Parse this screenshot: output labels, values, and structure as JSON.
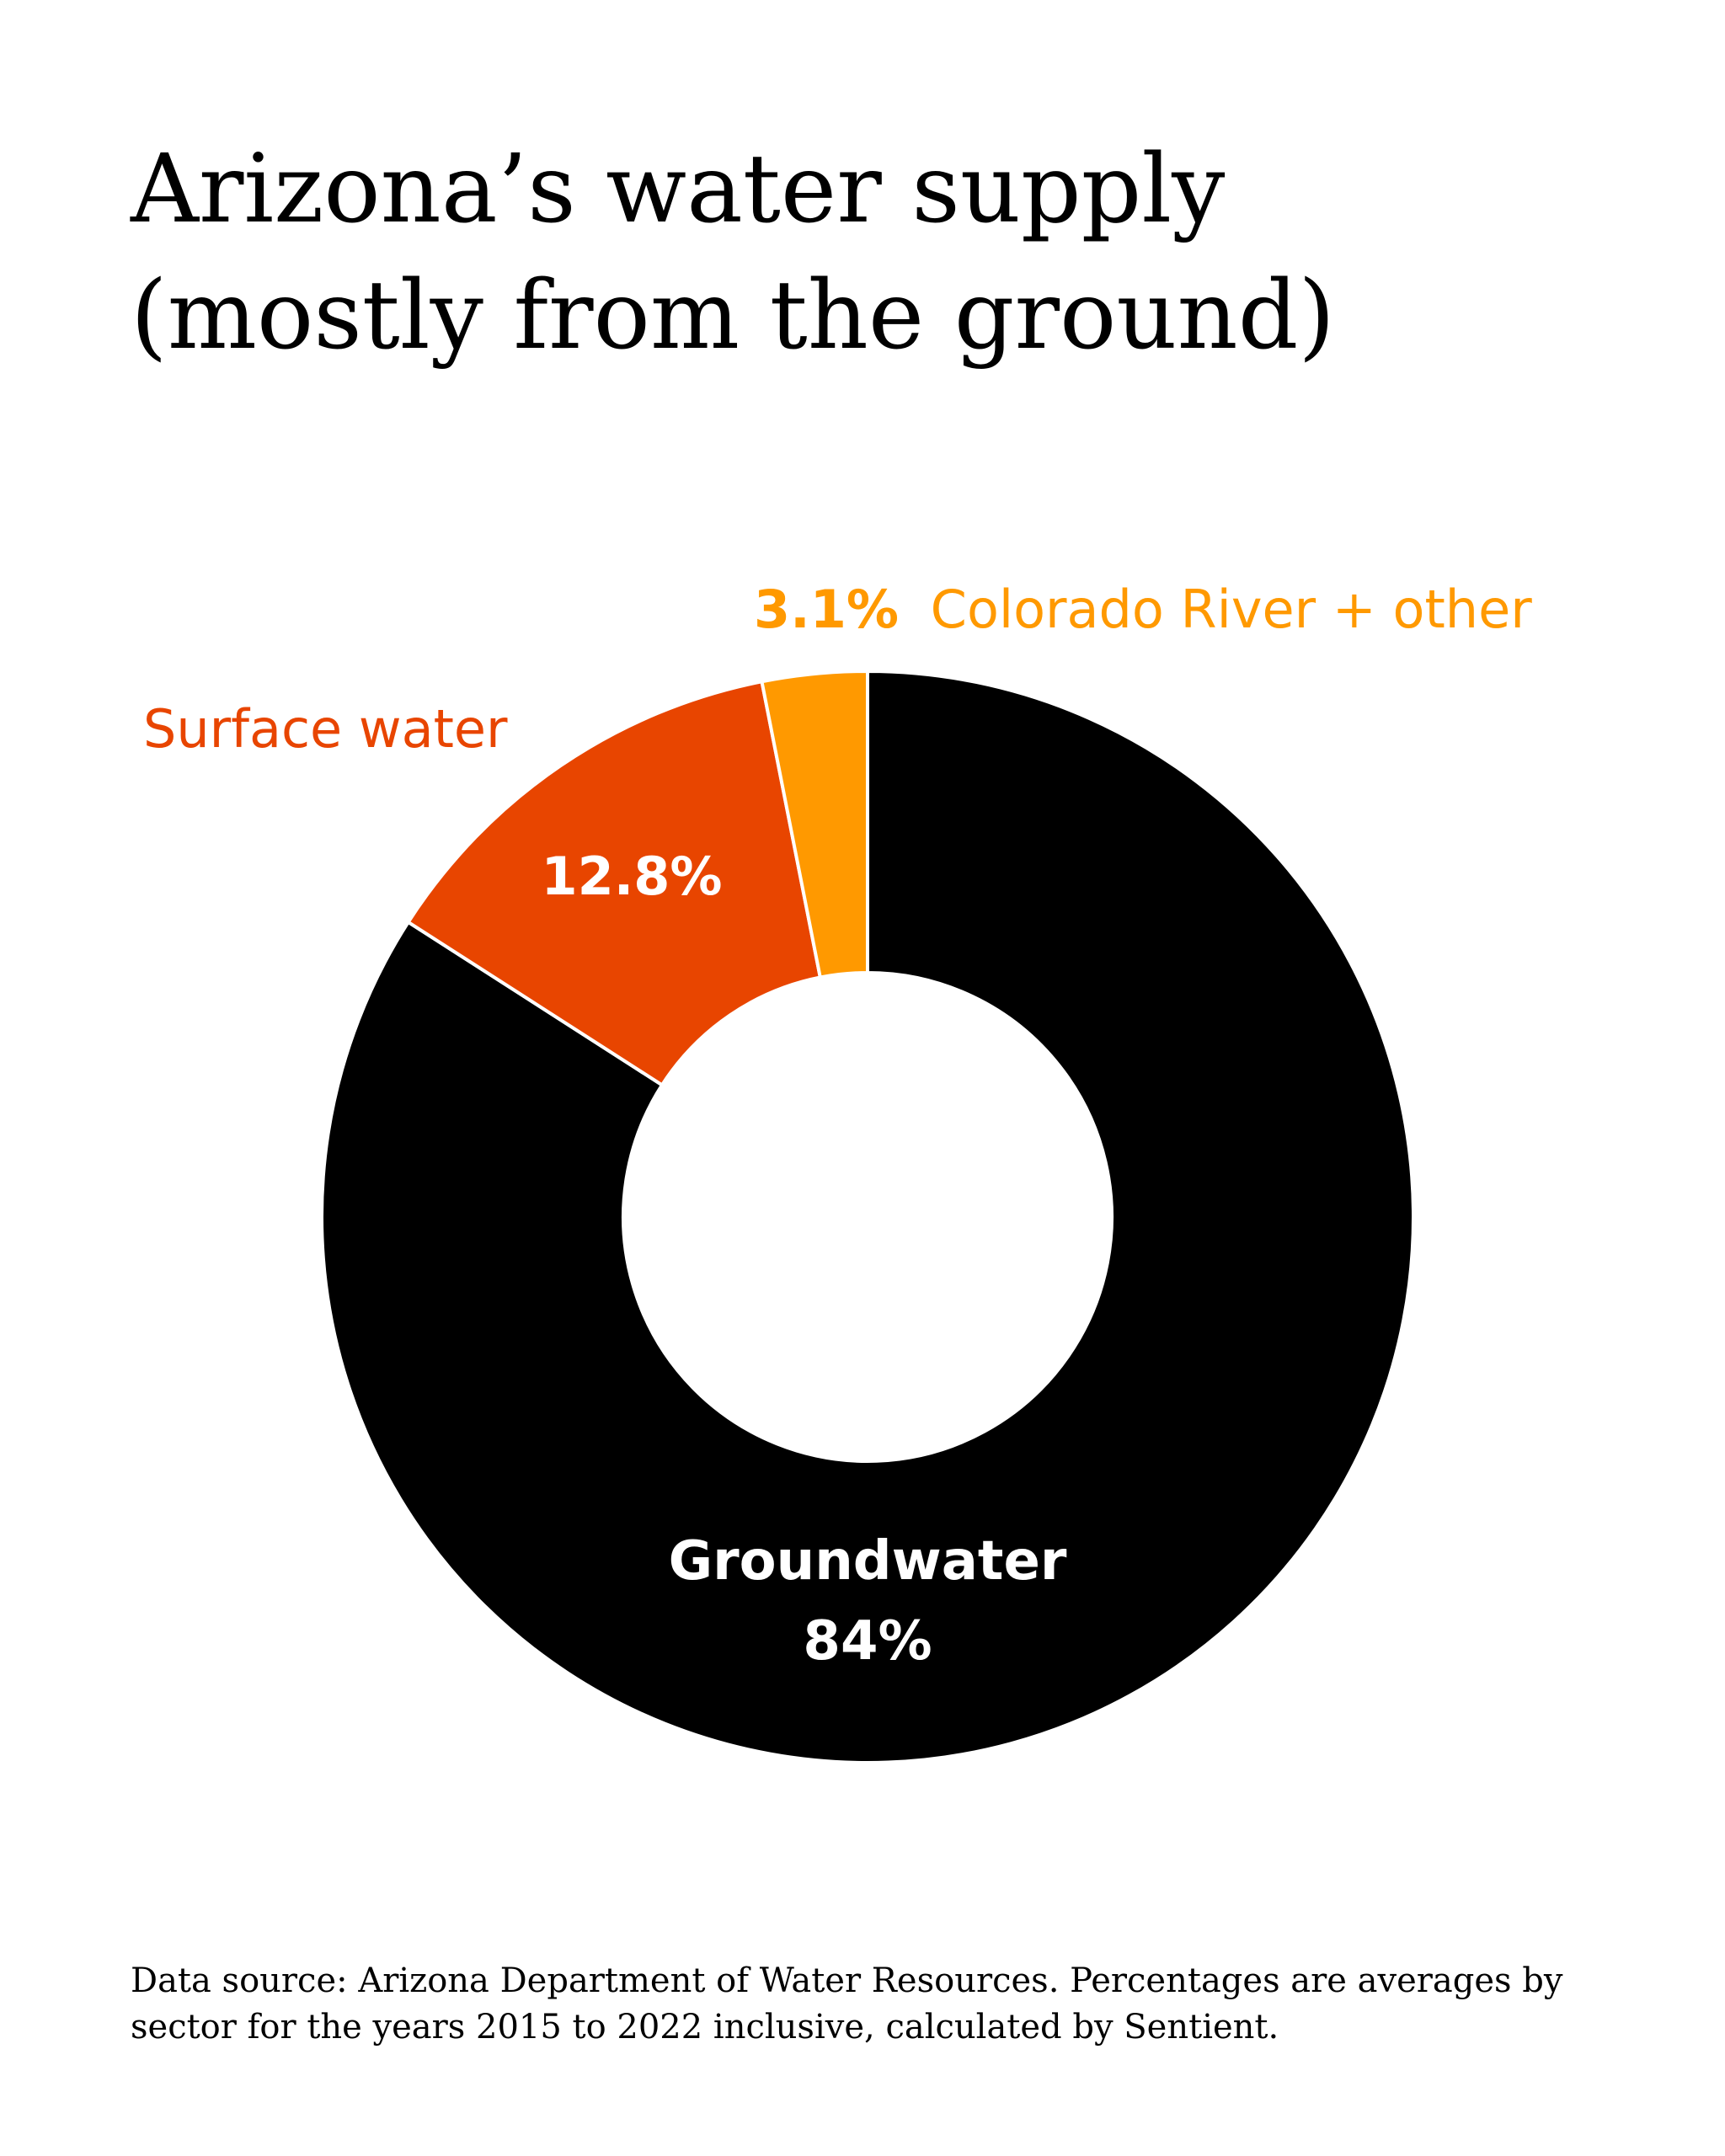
{
  "header": {
    "title_line1": "Arizona’s water supply",
    "title_line2": "(mostly from the ground)"
  },
  "labels": {
    "colorado_pct": "3.1%",
    "colorado_name": "Colorado River + other",
    "surface_name": "Surface water",
    "surface_pct": "12.8%",
    "ground_name": "Groundwater",
    "ground_pct": "84%"
  },
  "footer": {
    "source_note": "Data source: Arizona Department of Water Resources. Percentages are averages by sector for the years 2015 to 2022 inclusive, calculated by Sentient."
  },
  "chart_data": {
    "type": "pie",
    "donut": true,
    "slices": [
      {
        "label": "Groundwater",
        "value": 84.0,
        "color": "#000000"
      },
      {
        "label": "Surface water",
        "value": 12.8,
        "color": "#E84500"
      },
      {
        "label": "Colorado River + other",
        "value": 3.1,
        "color": "#FF9900"
      }
    ],
    "start": "12 o'clock",
    "direction": "clockwise",
    "separator_color": "#ffffff"
  }
}
